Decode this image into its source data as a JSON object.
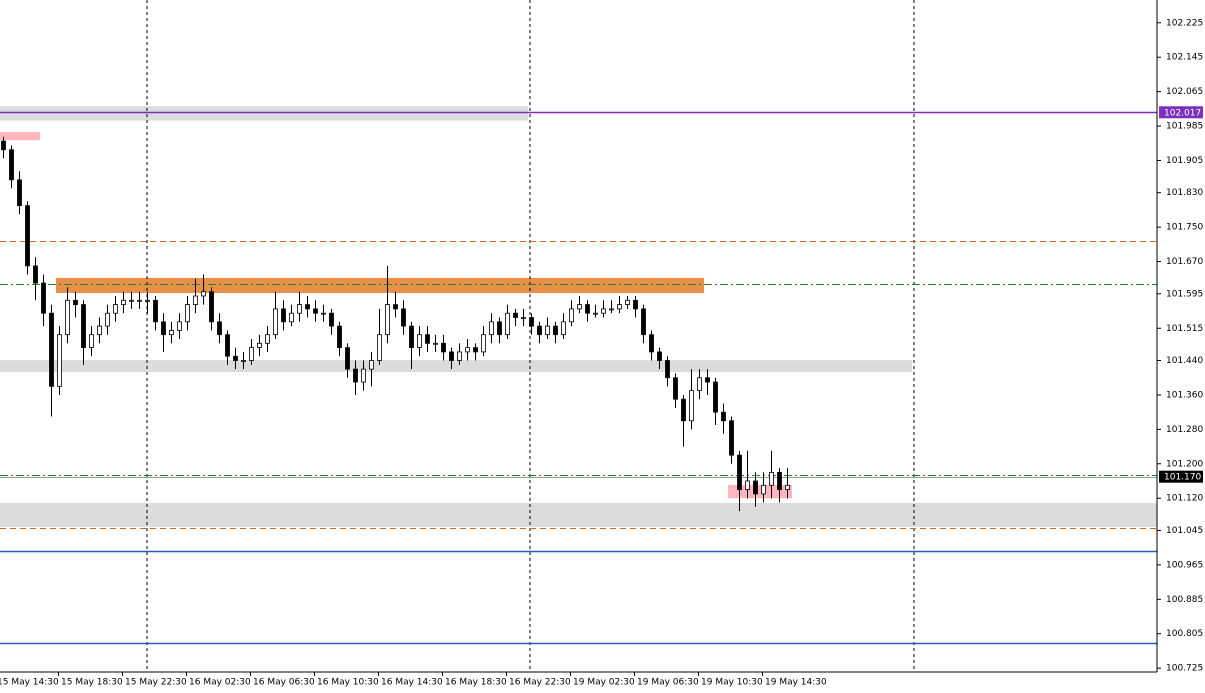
{
  "chart_data": {
    "type": "candlestick",
    "ylim": [
      100.716,
      102.278
    ],
    "yticks": [
      102.225,
      102.145,
      102.065,
      101.985,
      101.905,
      {
        "value": 101.83,
        "label": "101.830"
      },
      {
        "value": 101.75,
        "label": "101.750"
      },
      {
        "value": 101.67,
        "label": "101.670"
      },
      101.595,
      101.515,
      {
        "value": 101.44,
        "label": "101.440"
      },
      {
        "value": 101.36,
        "label": "101.360"
      },
      {
        "value": 101.28,
        "label": "101.280"
      },
      {
        "value": 101.2,
        "label": "101.200"
      },
      {
        "value": 101.12,
        "label": "101.120"
      },
      101.045,
      100.965,
      100.885,
      100.805,
      100.725
    ],
    "x_labels": [
      "15 May 14:30",
      "15 May 18:30",
      "15 May 22:30",
      "16 May 02:30",
      "16 May 06:30",
      "16 May 10:30",
      "16 May 14:30",
      "16 May 18:30",
      "16 May 22:30",
      "19 May 02:30",
      "19 May 06:30",
      "19 May 10:30",
      "19 May 14:30"
    ],
    "up_color": "#ffffff",
    "down_color": "#000000",
    "levels": [
      {
        "value": 102.017,
        "label": "102.017",
        "color": "#7b2fbe",
        "style": "solid",
        "label_color": "#ffffff"
      },
      {
        "value": 101.17,
        "label": "101.170",
        "color": "#9a9a9a",
        "style": "solid",
        "label_bg": "#000000",
        "label_color": "#ffffff"
      },
      {
        "value": 101.718,
        "color": "#d2691e",
        "style": "dash"
      },
      {
        "value": 101.051,
        "color": "#d2691e",
        "style": "dash"
      },
      {
        "value": 101.618,
        "color": "#2e7d32",
        "style": "dashdot"
      },
      {
        "value": 101.174,
        "color": "#2e7d32",
        "style": "dashdot"
      },
      {
        "value": 100.997,
        "color": "#2a5cc4",
        "style": "solid"
      },
      {
        "value": 100.783,
        "color": "#2a5cc4",
        "style": "solid"
      }
    ],
    "zones": [
      {
        "from": 101.998,
        "to": 102.031,
        "x_range": [
          0,
          66
        ],
        "color": "#dcdcdc"
      },
      {
        "from": 101.952,
        "to": 101.971,
        "x_range": [
          0,
          5
        ],
        "color": "#ffb6c1"
      },
      {
        "from": 101.597,
        "to": 101.632,
        "x_range": [
          7,
          88
        ],
        "color": "#e8904a"
      },
      {
        "from": 101.413,
        "to": 101.441,
        "x_range": [
          0,
          114
        ],
        "color": "#dcdcdc"
      },
      {
        "from": 101.12,
        "to": 101.151,
        "x_range": [
          91,
          99
        ],
        "color": "#ffb6c1"
      },
      {
        "from": 101.053,
        "to": 101.109,
        "x_range": [
          0,
          145
        ],
        "color": "#dcdcdc"
      }
    ],
    "candles": [
      [
        101.95,
        101.96,
        101.91,
        101.93
      ],
      [
        101.93,
        101.94,
        101.84,
        101.86
      ],
      [
        101.86,
        101.88,
        101.78,
        101.8
      ],
      [
        101.8,
        101.81,
        101.64,
        101.66
      ],
      [
        101.66,
        101.68,
        101.58,
        101.62
      ],
      [
        101.62,
        101.64,
        101.52,
        101.55
      ],
      [
        101.55,
        101.57,
        101.31,
        101.38
      ],
      [
        101.38,
        101.52,
        101.36,
        101.5
      ],
      [
        101.5,
        101.61,
        101.48,
        101.58
      ],
      [
        101.58,
        101.6,
        101.54,
        101.57
      ],
      [
        101.57,
        101.58,
        101.43,
        101.47
      ],
      [
        101.47,
        101.52,
        101.45,
        101.5
      ],
      [
        101.5,
        101.54,
        101.48,
        101.52
      ],
      [
        101.52,
        101.57,
        101.5,
        101.55
      ],
      [
        101.55,
        101.59,
        101.53,
        101.57
      ],
      [
        101.57,
        101.6,
        101.55,
        101.58
      ],
      [
        101.58,
        101.6,
        101.56,
        101.58
      ],
      [
        101.58,
        101.6,
        101.56,
        101.58
      ],
      [
        101.58,
        101.6,
        101.55,
        101.58
      ],
      [
        101.58,
        101.59,
        101.51,
        101.53
      ],
      [
        101.53,
        101.55,
        101.46,
        101.5
      ],
      [
        101.5,
        101.53,
        101.48,
        101.51
      ],
      [
        101.51,
        101.55,
        101.49,
        101.53
      ],
      [
        101.53,
        101.59,
        101.51,
        101.57
      ],
      [
        101.57,
        101.63,
        101.55,
        101.59
      ],
      [
        101.59,
        101.64,
        101.57,
        101.6
      ],
      [
        101.6,
        101.61,
        101.51,
        101.53
      ],
      [
        101.53,
        101.55,
        101.48,
        101.5
      ],
      [
        101.5,
        101.51,
        101.43,
        101.45
      ],
      [
        101.45,
        101.47,
        101.42,
        101.44
      ],
      [
        101.44,
        101.46,
        101.42,
        101.44
      ],
      [
        101.44,
        101.49,
        101.43,
        101.47
      ],
      [
        101.47,
        101.5,
        101.45,
        101.48
      ],
      [
        101.48,
        101.52,
        101.46,
        101.5
      ],
      [
        101.5,
        101.6,
        101.49,
        101.56
      ],
      [
        101.56,
        101.58,
        101.51,
        101.53
      ],
      [
        101.53,
        101.57,
        101.52,
        101.55
      ],
      [
        101.55,
        101.6,
        101.53,
        101.57
      ],
      [
        101.57,
        101.59,
        101.54,
        101.56
      ],
      [
        101.56,
        101.58,
        101.53,
        101.55
      ],
      [
        101.55,
        101.57,
        101.53,
        101.55
      ],
      [
        101.55,
        101.56,
        101.5,
        101.52
      ],
      [
        101.52,
        101.53,
        101.45,
        101.47
      ],
      [
        101.47,
        101.48,
        101.4,
        101.42
      ],
      [
        101.42,
        101.44,
        101.36,
        101.39
      ],
      [
        101.39,
        101.44,
        101.37,
        101.42
      ],
      [
        101.42,
        101.46,
        101.38,
        101.44
      ],
      [
        101.44,
        101.56,
        101.43,
        101.5
      ],
      [
        101.5,
        101.66,
        101.48,
        101.57
      ],
      [
        101.57,
        101.6,
        101.54,
        101.56
      ],
      [
        101.56,
        101.58,
        101.5,
        101.52
      ],
      [
        101.52,
        101.53,
        101.42,
        101.47
      ],
      [
        101.47,
        101.52,
        101.45,
        101.5
      ],
      [
        101.5,
        101.52,
        101.46,
        101.48
      ],
      [
        101.48,
        101.5,
        101.46,
        101.48
      ],
      [
        101.48,
        101.5,
        101.44,
        101.46
      ],
      [
        101.46,
        101.47,
        101.42,
        101.44
      ],
      [
        101.44,
        101.48,
        101.43,
        101.46
      ],
      [
        101.46,
        101.49,
        101.44,
        101.47
      ],
      [
        101.47,
        101.48,
        101.44,
        101.46
      ],
      [
        101.46,
        101.52,
        101.45,
        101.5
      ],
      [
        101.5,
        101.55,
        101.48,
        101.53
      ],
      [
        101.53,
        101.54,
        101.48,
        101.5
      ],
      [
        101.5,
        101.57,
        101.49,
        101.55
      ],
      [
        101.55,
        101.56,
        101.52,
        101.54
      ],
      [
        101.54,
        101.56,
        101.52,
        101.54
      ],
      [
        101.54,
        101.55,
        101.5,
        101.52
      ],
      [
        101.52,
        101.53,
        101.48,
        101.5
      ],
      [
        101.5,
        101.54,
        101.49,
        101.52
      ],
      [
        101.52,
        101.53,
        101.48,
        101.5
      ],
      [
        101.5,
        101.55,
        101.49,
        101.53
      ],
      [
        101.53,
        101.58,
        101.52,
        101.56
      ],
      [
        101.56,
        101.59,
        101.55,
        101.57
      ],
      [
        101.57,
        101.58,
        101.53,
        101.55
      ],
      [
        101.55,
        101.57,
        101.54,
        101.55
      ],
      [
        101.55,
        101.58,
        101.54,
        101.56
      ],
      [
        101.56,
        101.58,
        101.55,
        101.56
      ],
      [
        101.56,
        101.59,
        101.55,
        101.57
      ],
      [
        101.57,
        101.59,
        101.56,
        101.58
      ],
      [
        101.58,
        101.59,
        101.54,
        101.56
      ],
      [
        101.56,
        101.57,
        101.48,
        101.5
      ],
      [
        101.5,
        101.51,
        101.44,
        101.46
      ],
      [
        101.46,
        101.47,
        101.42,
        101.44
      ],
      [
        101.44,
        101.45,
        101.38,
        101.4
      ],
      [
        101.4,
        101.41,
        101.33,
        101.35
      ],
      [
        101.35,
        101.36,
        101.24,
        101.3
      ],
      [
        101.3,
        101.42,
        101.28,
        101.37
      ],
      [
        101.37,
        101.42,
        101.35,
        101.4
      ],
      [
        101.4,
        101.42,
        101.36,
        101.39
      ],
      [
        101.39,
        101.4,
        101.29,
        101.32
      ],
      [
        101.32,
        101.34,
        101.27,
        101.3
      ],
      [
        101.3,
        101.31,
        101.2,
        101.22
      ],
      [
        101.22,
        101.23,
        101.09,
        101.14
      ],
      [
        101.14,
        101.23,
        101.12,
        101.16
      ],
      [
        101.16,
        101.18,
        101.1,
        101.13
      ],
      [
        101.13,
        101.18,
        101.11,
        101.15
      ],
      [
        101.15,
        101.23,
        101.12,
        101.18
      ],
      [
        101.18,
        101.19,
        101.11,
        101.14
      ],
      [
        101.14,
        101.19,
        101.12,
        101.15
      ]
    ]
  }
}
